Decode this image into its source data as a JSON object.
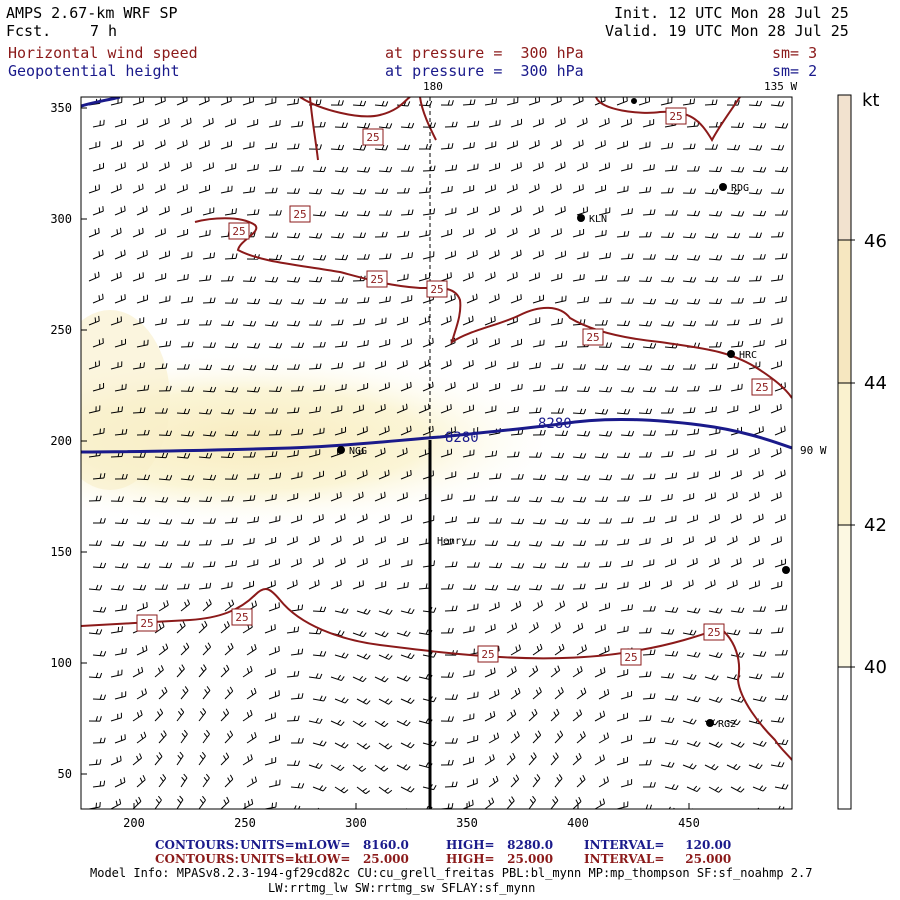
{
  "header": {
    "model": "AMPS 2.67-km WRF SP",
    "fcst_label": "Fcst.",
    "fcst_value": "7 h",
    "init": "Init. 12 UTC Mon 28 Jul 25",
    "valid": "Valid. 19 UTC Mon 28 Jul 25",
    "field1": "Horizontal wind speed",
    "field2": "Geopotential height",
    "level1": "at pressure =  300 hPa",
    "level2": "at pressure =  300 hPa",
    "sm1": "sm= 3",
    "sm2": "sm= 2"
  },
  "map": {
    "lon_labels": {
      "top_center": "180",
      "top_right": "135 W",
      "right_mid": "90 W"
    },
    "x_ticks": [
      "200",
      "250",
      "300",
      "350",
      "400",
      "450"
    ],
    "y_ticks": [
      "350",
      "300",
      "250",
      "200",
      "150",
      "100",
      "50"
    ],
    "stations": [
      {
        "label": "RDG"
      },
      {
        "label": "KLN"
      },
      {
        "label": "HRC"
      },
      {
        "label": "NGG"
      },
      {
        "label": "Henry"
      },
      {
        "label": "RG2"
      }
    ],
    "height_contour_labels": [
      "8280",
      "8280"
    ],
    "wind_contour_label": "25",
    "colors": {
      "wind_contour": "#8b1a1a",
      "height_contour": "#1a1a8b",
      "shade_40": "#fdfde8",
      "shade_42": "#fbf5d4",
      "shade_44": "#f9eec4",
      "shade_46": "#f2e2cf"
    }
  },
  "colorbar": {
    "unit": "kt",
    "labels": [
      "46",
      "44",
      "42",
      "40"
    ]
  },
  "footer": {
    "contours_label": "CONTOURS:",
    "row1": {
      "units": "UNITS=m",
      "low": "LOW=   8160.0",
      "high": "HIGH=   8280.0",
      "interval": "INTERVAL=     120.00"
    },
    "row2": {
      "units": "UNITS=kt",
      "low": "LOW=   25.000",
      "high": "HIGH=   25.000",
      "interval": "INTERVAL=     25.000"
    },
    "model_info_1": "Model Info: MPASv8.2.3-194-gf29cd82c CU:cu_grell_freitas PBL:bl_mynn MP:mp_thompson SF:sf_noahmp 2.7",
    "model_info_2": "LW:rrtmg_lw SW:rrtmg_sw SFLAY:sf_mynn"
  }
}
